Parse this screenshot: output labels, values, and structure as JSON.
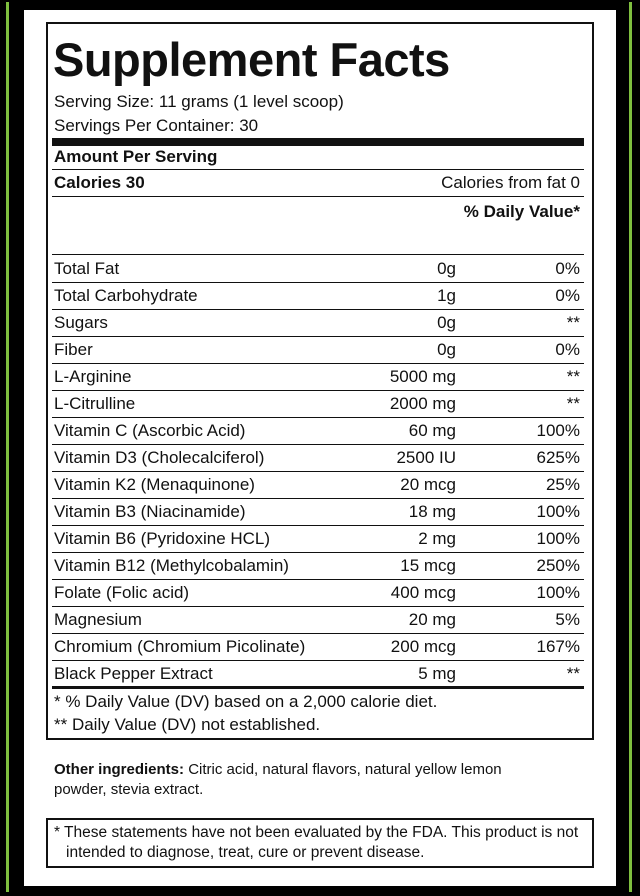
{
  "title": "Supplement Facts",
  "serving_size": "Serving Size: 11 grams (1 level scoop)",
  "servings_per_container": "Servings Per Container: 30",
  "amount_per_serving": "Amount Per Serving",
  "calories": "Calories 30",
  "calories_from_fat": "Calories from fat 0",
  "daily_value_header": "% Daily Value*",
  "rows": [
    [
      "Total Fat",
      "0g",
      "0%"
    ],
    [
      "Total Carbohydrate",
      "1g",
      "0%"
    ],
    [
      "Sugars",
      "0g",
      "**"
    ],
    [
      "Fiber",
      "0g",
      "0%"
    ],
    [
      "L-Arginine",
      "5000 mg",
      "**"
    ],
    [
      "L-Citrulline",
      "2000 mg",
      "**"
    ],
    [
      "Vitamin C (Ascorbic Acid)",
      "60 mg",
      "100%"
    ],
    [
      "Vitamin D3 (Cholecalciferol)",
      "2500 IU",
      "625%"
    ],
    [
      "Vitamin K2 (Menaquinone)",
      "20 mcg",
      "25%"
    ],
    [
      "Vitamin B3 (Niacinamide)",
      "18 mg",
      "100%"
    ],
    [
      "Vitamin B6 (Pyridoxine HCL)",
      "2 mg",
      "100%"
    ],
    [
      "Vitamin B12 (Methylcobalamin)",
      "15 mcg",
      "250%"
    ],
    [
      "Folate (Folic acid)",
      "400 mcg",
      "100%"
    ],
    [
      "Magnesium",
      "20 mg",
      "5%"
    ],
    [
      "Chromium (Chromium Picolinate)",
      "200 mcg",
      "167%"
    ],
    [
      "Black Pepper Extract",
      "5 mg",
      "**"
    ]
  ],
  "footnotes": [
    "* % Daily Value (DV) based on a 2,000 calorie diet.",
    "** Daily Value (DV) not established."
  ],
  "other_ingredients": {
    "label": "Other ingredients:",
    "text": "Citric acid, natural flavors, natural yellow lemon powder, stevia extract."
  },
  "disclaimer": "* These statements have not been evaluated by the FDA. This product is not intended to diagnose, treat, cure or prevent disease."
}
